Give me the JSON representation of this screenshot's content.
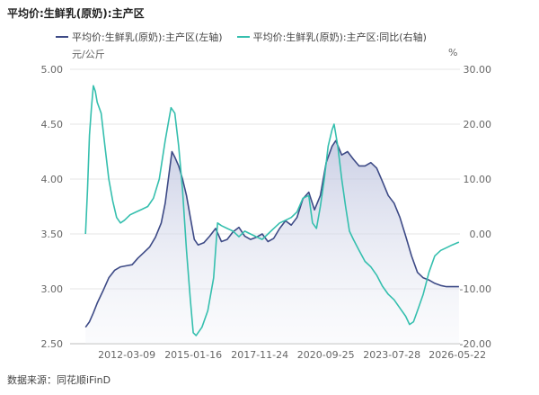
{
  "title": "平均价:生鲜乳(原奶):主产区",
  "legend": {
    "left_label": "平均价:生鲜乳(原奶):主产区(左轴)",
    "right_label": "平均价:生鲜乳(原奶):主产区:同比(右轴)"
  },
  "units": {
    "left": "元/公斤",
    "right": "%"
  },
  "source": "数据来源：同花顺iFinD",
  "colors": {
    "price": "#3d4a86",
    "yoy": "#35bfae",
    "grid": "#e6e6e6",
    "axis_text": "#666666"
  },
  "chart_data": {
    "type": "line",
    "x_ticks": [
      "2012-03-09",
      "2015-01-16",
      "2017-11-24",
      "2020-09-25",
      "2023-07-28",
      "2026-05-22"
    ],
    "y_left": {
      "ticks": [
        "2.50",
        "3.00",
        "3.50",
        "4.00",
        "4.50",
        "5.00"
      ],
      "min": 2.5,
      "max": 5.0
    },
    "y_right": {
      "ticks": [
        "-20.00",
        "-10.00",
        "0.00",
        "10.00",
        "20.00",
        "30.00"
      ],
      "min": -20,
      "max": 30
    },
    "series": [
      {
        "name": "平均价:生鲜乳(原奶):主产区(左轴)",
        "axis": "left",
        "fill": true,
        "points": [
          [
            "2010-06-01",
            2.65
          ],
          [
            "2010-08-01",
            2.7
          ],
          [
            "2010-10-01",
            2.78
          ],
          [
            "2010-12-01",
            2.87
          ],
          [
            "2011-03-01",
            2.98
          ],
          [
            "2011-06-01",
            3.1
          ],
          [
            "2011-09-01",
            3.17
          ],
          [
            "2011-12-01",
            3.2
          ],
          [
            "2012-03-01",
            3.21
          ],
          [
            "2012-06-01",
            3.22
          ],
          [
            "2012-09-01",
            3.28
          ],
          [
            "2012-12-01",
            3.33
          ],
          [
            "2013-03-01",
            3.38
          ],
          [
            "2013-06-01",
            3.47
          ],
          [
            "2013-09-01",
            3.6
          ],
          [
            "2013-11-01",
            3.78
          ],
          [
            "2014-01-01",
            4.05
          ],
          [
            "2014-02-15",
            4.25
          ],
          [
            "2014-04-01",
            4.2
          ],
          [
            "2014-06-01",
            4.12
          ],
          [
            "2014-08-01",
            4.0
          ],
          [
            "2014-10-01",
            3.85
          ],
          [
            "2014-12-01",
            3.65
          ],
          [
            "2015-02-01",
            3.45
          ],
          [
            "2015-04-01",
            3.4
          ],
          [
            "2015-07-01",
            3.42
          ],
          [
            "2015-10-01",
            3.48
          ],
          [
            "2016-01-01",
            3.55
          ],
          [
            "2016-04-01",
            3.43
          ],
          [
            "2016-07-01",
            3.45
          ],
          [
            "2016-10-01",
            3.52
          ],
          [
            "2017-01-01",
            3.56
          ],
          [
            "2017-04-01",
            3.48
          ],
          [
            "2017-07-01",
            3.45
          ],
          [
            "2017-10-01",
            3.47
          ],
          [
            "2018-01-01",
            3.5
          ],
          [
            "2018-04-01",
            3.43
          ],
          [
            "2018-07-01",
            3.46
          ],
          [
            "2018-10-01",
            3.55
          ],
          [
            "2019-01-01",
            3.62
          ],
          [
            "2019-04-01",
            3.58
          ],
          [
            "2019-07-01",
            3.65
          ],
          [
            "2019-10-01",
            3.82
          ],
          [
            "2020-01-01",
            3.88
          ],
          [
            "2020-04-01",
            3.72
          ],
          [
            "2020-07-01",
            3.85
          ],
          [
            "2020-10-01",
            4.15
          ],
          [
            "2021-01-01",
            4.3
          ],
          [
            "2021-03-01",
            4.35
          ],
          [
            "2021-06-01",
            4.22
          ],
          [
            "2021-09-01",
            4.25
          ],
          [
            "2021-12-01",
            4.18
          ],
          [
            "2022-03-01",
            4.12
          ],
          [
            "2022-06-01",
            4.12
          ],
          [
            "2022-09-01",
            4.15
          ],
          [
            "2022-12-01",
            4.1
          ],
          [
            "2023-03-01",
            3.98
          ],
          [
            "2023-06-01",
            3.85
          ],
          [
            "2023-09-01",
            3.78
          ],
          [
            "2023-12-01",
            3.65
          ],
          [
            "2024-03-01",
            3.48
          ],
          [
            "2024-06-01",
            3.3
          ],
          [
            "2024-09-01",
            3.15
          ],
          [
            "2024-12-01",
            3.1
          ],
          [
            "2025-03-01",
            3.08
          ],
          [
            "2025-06-01",
            3.05
          ],
          [
            "2025-09-01",
            3.03
          ],
          [
            "2025-12-01",
            3.02
          ],
          [
            "2026-03-01",
            3.02
          ],
          [
            "2026-06-15",
            3.02
          ]
        ]
      },
      {
        "name": "平均价:生鲜乳(原奶):主产区:同比(右轴)",
        "axis": "right",
        "fill": false,
        "points": [
          [
            "2010-06-01",
            0.0
          ],
          [
            "2010-07-01",
            8.0
          ],
          [
            "2010-08-01",
            18.0
          ],
          [
            "2010-09-01",
            23.0
          ],
          [
            "2010-10-01",
            27.0
          ],
          [
            "2010-11-01",
            26.0
          ],
          [
            "2010-12-01",
            24.0
          ],
          [
            "2011-02-01",
            22.0
          ],
          [
            "2011-04-01",
            16.0
          ],
          [
            "2011-06-01",
            10.0
          ],
          [
            "2011-08-01",
            6.0
          ],
          [
            "2011-10-01",
            3.0
          ],
          [
            "2011-12-01",
            2.0
          ],
          [
            "2012-02-01",
            2.5
          ],
          [
            "2012-05-01",
            3.5
          ],
          [
            "2012-08-01",
            4.0
          ],
          [
            "2012-11-01",
            4.5
          ],
          [
            "2013-02-01",
            5.0
          ],
          [
            "2013-05-01",
            6.5
          ],
          [
            "2013-08-01",
            10.0
          ],
          [
            "2013-11-01",
            17.0
          ],
          [
            "2014-01-01",
            21.0
          ],
          [
            "2014-02-01",
            23.0
          ],
          [
            "2014-04-01",
            22.0
          ],
          [
            "2014-06-01",
            16.0
          ],
          [
            "2014-08-01",
            8.0
          ],
          [
            "2014-10-01",
            -3.0
          ],
          [
            "2014-12-01",
            -12.0
          ],
          [
            "2015-01-15",
            -18.0
          ],
          [
            "2015-03-01",
            -18.5
          ],
          [
            "2015-06-01",
            -17.0
          ],
          [
            "2015-09-01",
            -14.0
          ],
          [
            "2015-12-01",
            -8.0
          ],
          [
            "2016-02-01",
            2.0
          ],
          [
            "2016-04-01",
            1.5
          ],
          [
            "2016-07-01",
            1.0
          ],
          [
            "2016-10-01",
            0.5
          ],
          [
            "2017-01-01",
            -0.5
          ],
          [
            "2017-04-01",
            0.5
          ],
          [
            "2017-07-01",
            0.0
          ],
          [
            "2017-10-01",
            -0.5
          ],
          [
            "2018-01-01",
            -1.0
          ],
          [
            "2018-04-01",
            0.0
          ],
          [
            "2018-07-01",
            1.0
          ],
          [
            "2018-10-01",
            2.0
          ],
          [
            "2019-01-01",
            2.5
          ],
          [
            "2019-04-01",
            3.0
          ],
          [
            "2019-07-01",
            4.0
          ],
          [
            "2019-10-01",
            6.5
          ],
          [
            "2020-01-01",
            7.0
          ],
          [
            "2020-03-01",
            2.0
          ],
          [
            "2020-05-01",
            1.0
          ],
          [
            "2020-07-01",
            5.0
          ],
          [
            "2020-09-01",
            10.0
          ],
          [
            "2020-11-01",
            16.0
          ],
          [
            "2021-01-01",
            19.0
          ],
          [
            "2021-02-01",
            20.0
          ],
          [
            "2021-04-01",
            16.0
          ],
          [
            "2021-06-01",
            10.0
          ],
          [
            "2021-08-01",
            5.0
          ],
          [
            "2021-10-01",
            0.5
          ],
          [
            "2021-12-01",
            -1.0
          ],
          [
            "2022-03-01",
            -3.0
          ],
          [
            "2022-06-01",
            -5.0
          ],
          [
            "2022-09-01",
            -6.0
          ],
          [
            "2022-12-01",
            -7.5
          ],
          [
            "2023-03-01",
            -9.5
          ],
          [
            "2023-06-01",
            -11.0
          ],
          [
            "2023-09-01",
            -12.0
          ],
          [
            "2023-12-01",
            -13.5
          ],
          [
            "2024-03-01",
            -15.0
          ],
          [
            "2024-05-01",
            -16.5
          ],
          [
            "2024-07-01",
            -16.0
          ],
          [
            "2024-09-01",
            -14.0
          ],
          [
            "2024-12-01",
            -11.0
          ],
          [
            "2025-03-01",
            -7.0
          ],
          [
            "2025-06-01",
            -4.0
          ],
          [
            "2025-09-01",
            -3.0
          ],
          [
            "2025-12-01",
            -2.5
          ],
          [
            "2026-03-01",
            -2.0
          ],
          [
            "2026-06-15",
            -1.5
          ]
        ]
      }
    ],
    "grid": "horizontal",
    "legend_position": "top-left"
  }
}
